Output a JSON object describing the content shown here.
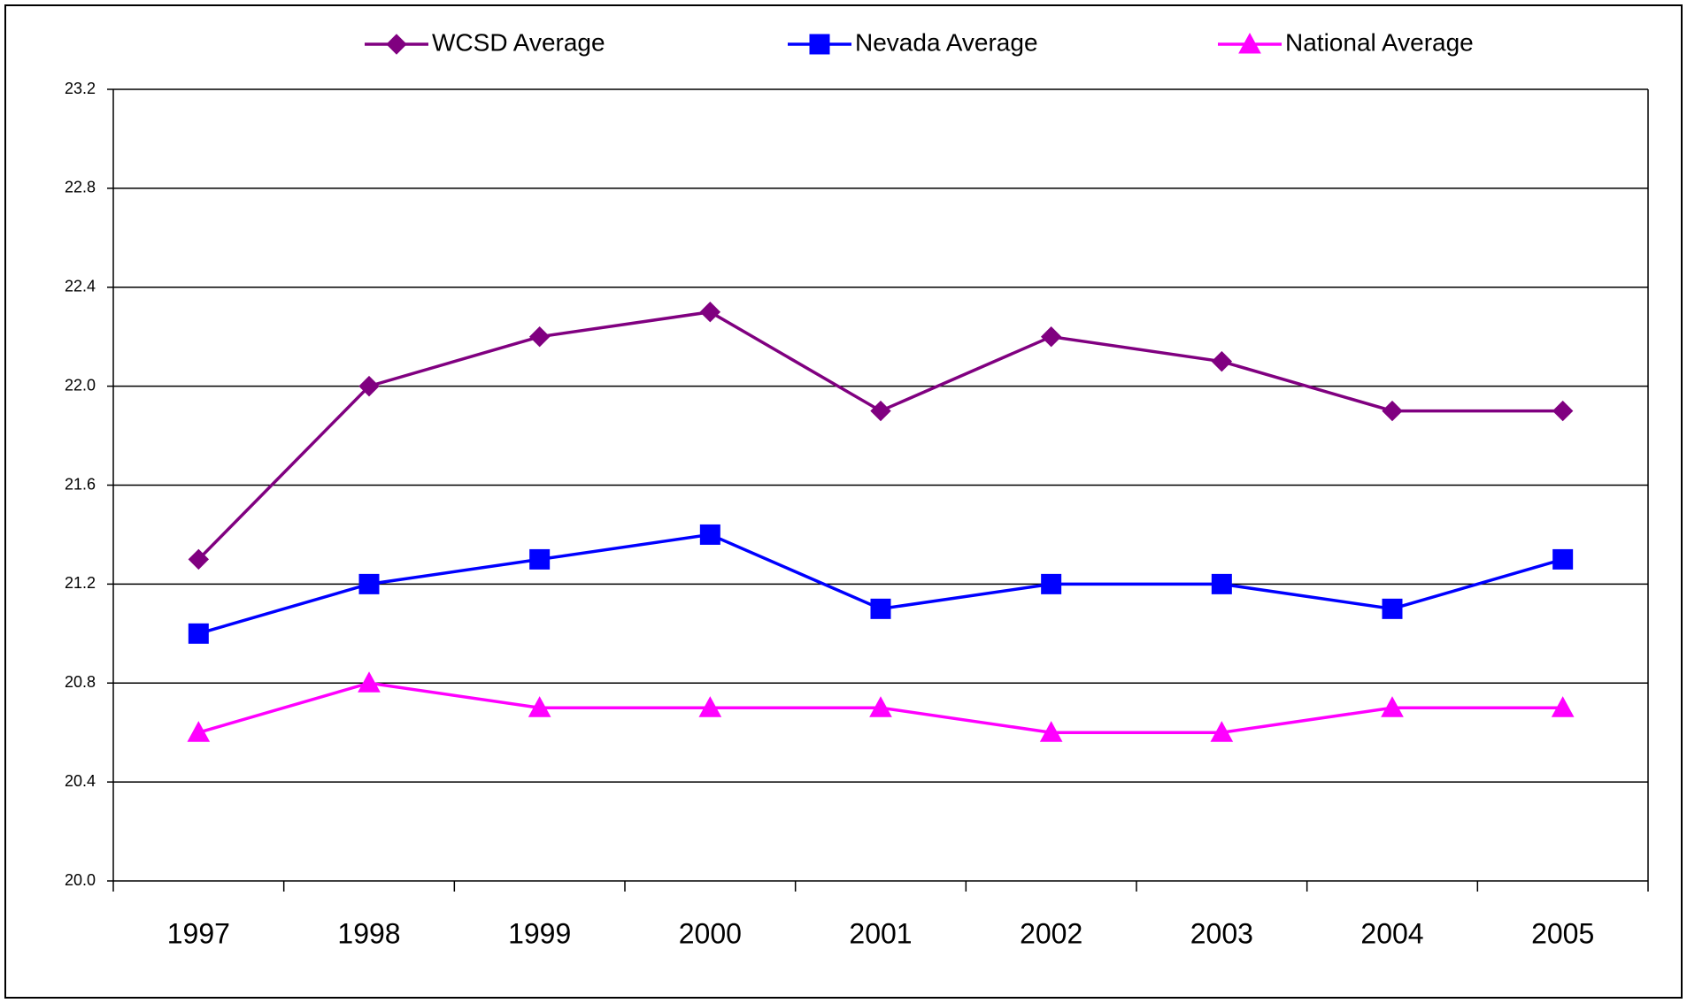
{
  "chart_data": {
    "type": "line",
    "categories": [
      "1997",
      "1998",
      "1999",
      "2000",
      "2001",
      "2002",
      "2003",
      "2004",
      "2005"
    ],
    "series": [
      {
        "name": "WCSD Average",
        "color": "#800080",
        "marker": "diamond",
        "values": [
          21.3,
          22.0,
          22.2,
          22.3,
          21.9,
          22.2,
          22.1,
          21.9,
          21.9
        ]
      },
      {
        "name": "Nevada Average",
        "color": "#0000ff",
        "marker": "square",
        "values": [
          21.0,
          21.2,
          21.3,
          21.4,
          21.1,
          21.2,
          21.2,
          21.1,
          21.3
        ]
      },
      {
        "name": "National Average",
        "color": "#ff00ff",
        "marker": "triangle",
        "values": [
          20.6,
          20.8,
          20.7,
          20.7,
          20.7,
          20.6,
          20.6,
          20.7,
          20.7
        ]
      }
    ],
    "ylim": [
      20.0,
      23.2
    ],
    "yticks": [
      {
        "value": 20,
        "label": "20.0"
      },
      20.4,
      20.8,
      21.2,
      21.6,
      {
        "value": 22,
        "label": "22.0"
      },
      22.4,
      22.8,
      23.2
    ],
    "grid": true,
    "legend": "top"
  }
}
